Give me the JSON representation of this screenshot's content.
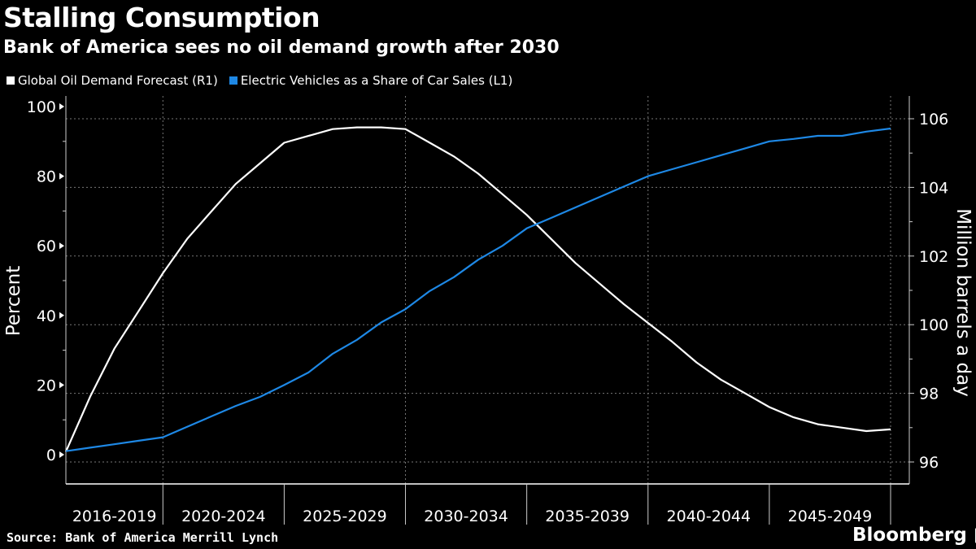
{
  "header": {
    "title": "Stalling Consumption",
    "subtitle": "Bank of America sees no oil demand growth after 2030"
  },
  "footer": {
    "source": "Source: Bank of America Merrill Lynch",
    "brand": "Bloomberg"
  },
  "chart_data": {
    "type": "line",
    "title": "Stalling Consumption",
    "subtitle": "Bank of America sees no oil demand growth after 2030",
    "x": [
      2016,
      2017,
      2018,
      2019,
      2020,
      2021,
      2022,
      2023,
      2024,
      2025,
      2026,
      2027,
      2028,
      2029,
      2030,
      2031,
      2032,
      2033,
      2034,
      2035,
      2036,
      2037,
      2038,
      2039,
      2040,
      2041,
      2042,
      2043,
      2044,
      2045,
      2046,
      2047,
      2048,
      2049,
      2050
    ],
    "categories": [
      "2016-2019",
      "2020-2024",
      "2025-2029",
      "2030-2034",
      "2035-2039",
      "2040-2044",
      "2045-2049"
    ],
    "ylabel_left": "Percent",
    "ylabel_right": "Million barrels a day",
    "ylim_left": [
      0,
      100
    ],
    "ylim_right": [
      96,
      106
    ],
    "yticks_left": [
      "0",
      "20",
      "40",
      "60",
      "80",
      "100"
    ],
    "yticks_right": [
      "96",
      "98",
      "100",
      "102",
      "104",
      "106"
    ],
    "grid": true,
    "legend_placement": "top-left",
    "series": [
      {
        "name": "Global Oil Demand Forecast (R1)",
        "axis": "right",
        "color": "#ffffff",
        "values": [
          96.3,
          97.9,
          99.3,
          100.4,
          101.5,
          102.5,
          103.3,
          104.1,
          104.7,
          105.3,
          105.5,
          105.7,
          105.75,
          105.75,
          105.7,
          105.3,
          104.9,
          104.4,
          103.8,
          103.2,
          102.5,
          101.8,
          101.2,
          100.6,
          100.05,
          99.5,
          98.9,
          98.4,
          98.0,
          97.6,
          97.3,
          97.1,
          97.0,
          96.9,
          96.95
        ]
      },
      {
        "name": "Electric Vehicles as a Share of Car Sales (L1)",
        "axis": "left",
        "color": "#1e88e5",
        "values": [
          1,
          2,
          3,
          4,
          5,
          8,
          11,
          14,
          16.6,
          20,
          23.6,
          29,
          33,
          38,
          41.8,
          47,
          51,
          56,
          60,
          65,
          68,
          71,
          74,
          77,
          80,
          82,
          84,
          86,
          88,
          90,
          90.7,
          91.6,
          91.6,
          92.8,
          93.7
        ]
      }
    ]
  }
}
